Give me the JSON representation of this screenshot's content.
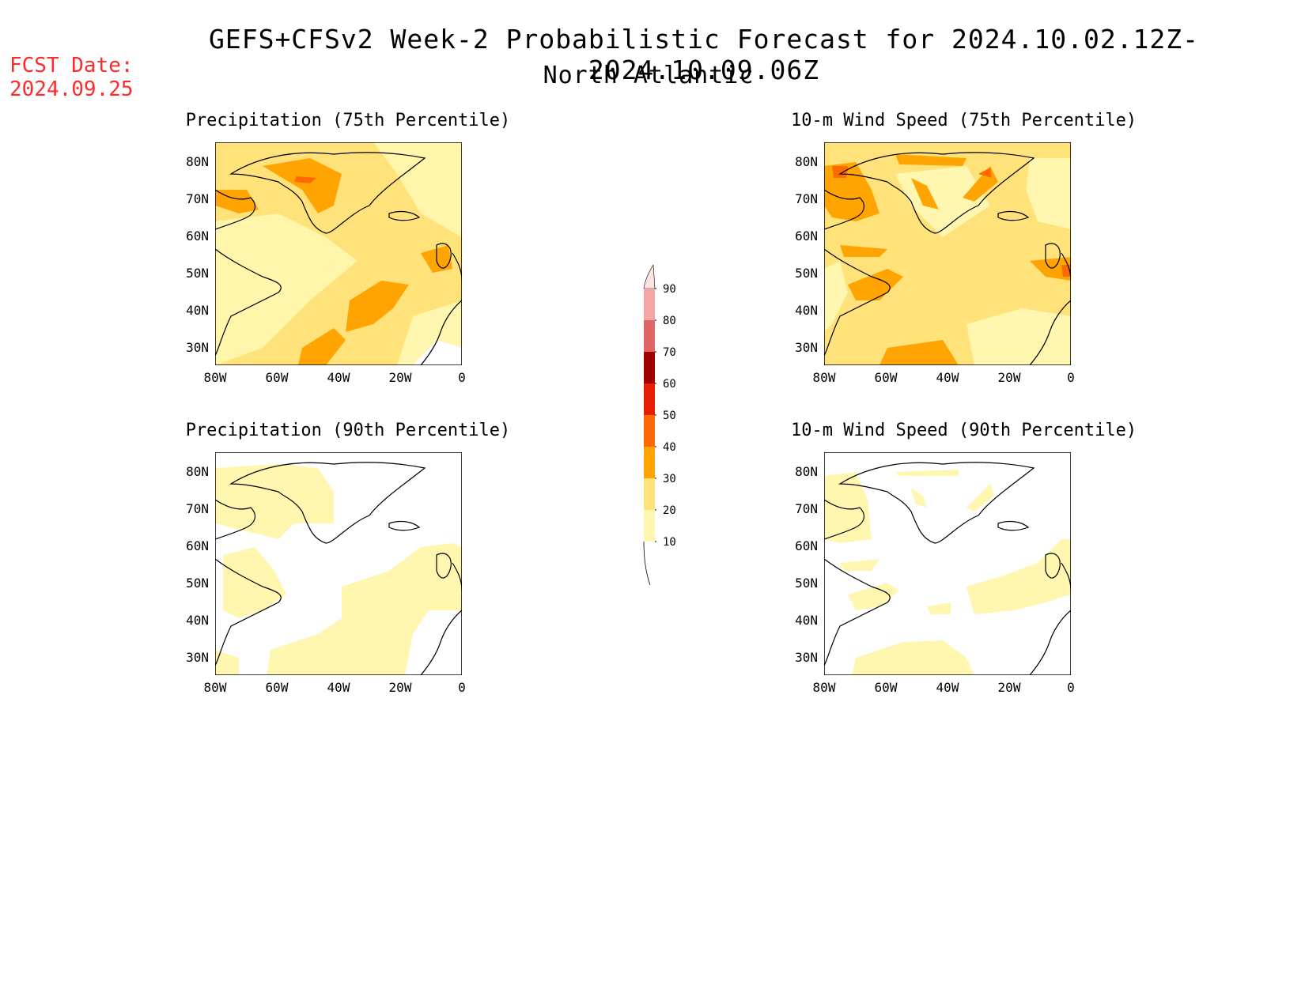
{
  "header": {
    "title": "GEFS+CFSv2 Week-2 Probabilistic Forecast for 2024.10.02.12Z-2024.10.09.06Z",
    "subtitle": "North Atlantic",
    "fcst_line1": "FCST Date:",
    "fcst_line2": "2024.09.25"
  },
  "panels": [
    {
      "title": "Precipitation (75th Percentile)",
      "id": "precip75"
    },
    {
      "title": "10-m Wind Speed (75th Percentile)",
      "id": "wind75"
    },
    {
      "title": "Precipitation (90th Percentile)",
      "id": "precip90"
    },
    {
      "title": "10-m Wind Speed (90th Percentile)",
      "id": "wind90"
    }
  ],
  "axes": {
    "lat_labels": [
      "80N",
      "70N",
      "60N",
      "50N",
      "40N",
      "30N"
    ],
    "lon_labels": [
      "80W",
      "60W",
      "40W",
      "20W",
      "0"
    ]
  },
  "colorbar": {
    "levels": [
      "10",
      "20",
      "30",
      "40",
      "50",
      "60",
      "70",
      "80",
      "90"
    ],
    "colors": [
      "#fff7b0",
      "#ffe27a",
      "#ffa400",
      "#ff6a00",
      "#e61f00",
      "#a10000",
      "#e06666",
      "#f4a6a6",
      "#ffe4e4"
    ]
  }
}
